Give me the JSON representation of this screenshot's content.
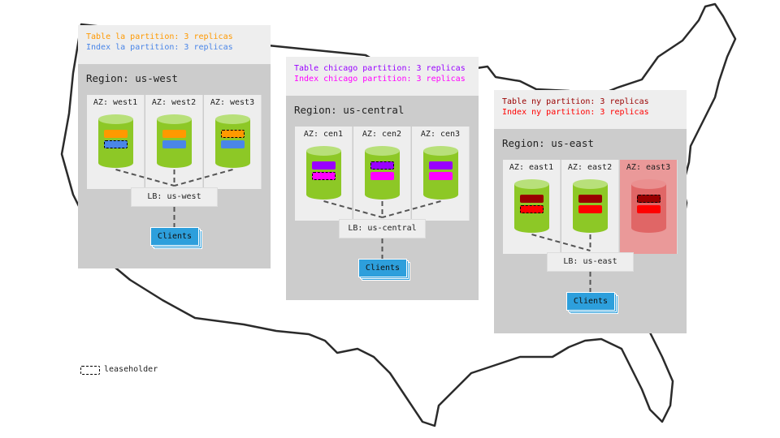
{
  "regions": [
    {
      "id": "us-west",
      "label": "Region: us-west",
      "table_partition": "Table la partition: 3 replicas",
      "index_partition": "Index la partition: 3 replicas",
      "table_color": "#ff9900",
      "index_color": "#4a86e8",
      "table_text_color": "#ff9900",
      "index_text_color": "#4a86e8",
      "lb": "LB: us-west",
      "clients": "Clients",
      "zones": [
        {
          "label": "AZ: west1",
          "table_leaseholder": false,
          "index_leaseholder": true,
          "down": false
        },
        {
          "label": "AZ: west2",
          "table_leaseholder": false,
          "index_leaseholder": false,
          "down": false
        },
        {
          "label": "AZ: west3",
          "table_leaseholder": true,
          "index_leaseholder": false,
          "down": false
        }
      ]
    },
    {
      "id": "us-central",
      "label": "Region: us-central",
      "table_partition": "Table chicago partition: 3 replicas",
      "index_partition": "Index chicago partition: 3 replicas",
      "table_color": "#9900ff",
      "index_color": "#ff00ff",
      "table_text_color": "#9900ff",
      "index_text_color": "#ff00ff",
      "lb": "LB: us-central",
      "clients": "Clients",
      "zones": [
        {
          "label": "AZ: cen1",
          "table_leaseholder": false,
          "index_leaseholder": true,
          "down": false
        },
        {
          "label": "AZ: cen2",
          "table_leaseholder": true,
          "index_leaseholder": false,
          "down": false
        },
        {
          "label": "AZ: cen3",
          "table_leaseholder": false,
          "index_leaseholder": false,
          "down": false
        }
      ]
    },
    {
      "id": "us-east",
      "label": "Region: us-east",
      "table_partition": "Table ny partition: 3 replicas",
      "index_partition": "Index ny partition: 3 replicas",
      "table_color": "#990000",
      "index_color": "#ff0000",
      "table_text_color": "#990000",
      "index_text_color": "#ff0000",
      "lb": "LB: us-east",
      "clients": "Clients",
      "zones": [
        {
          "label": "AZ: east1",
          "table_leaseholder": false,
          "index_leaseholder": true,
          "down": false
        },
        {
          "label": "AZ: east2",
          "table_leaseholder": false,
          "index_leaseholder": false,
          "down": false
        },
        {
          "label": "AZ: east3",
          "table_leaseholder": true,
          "index_leaseholder": false,
          "down": true
        }
      ]
    }
  ],
  "legend": {
    "label": "leaseholder"
  }
}
